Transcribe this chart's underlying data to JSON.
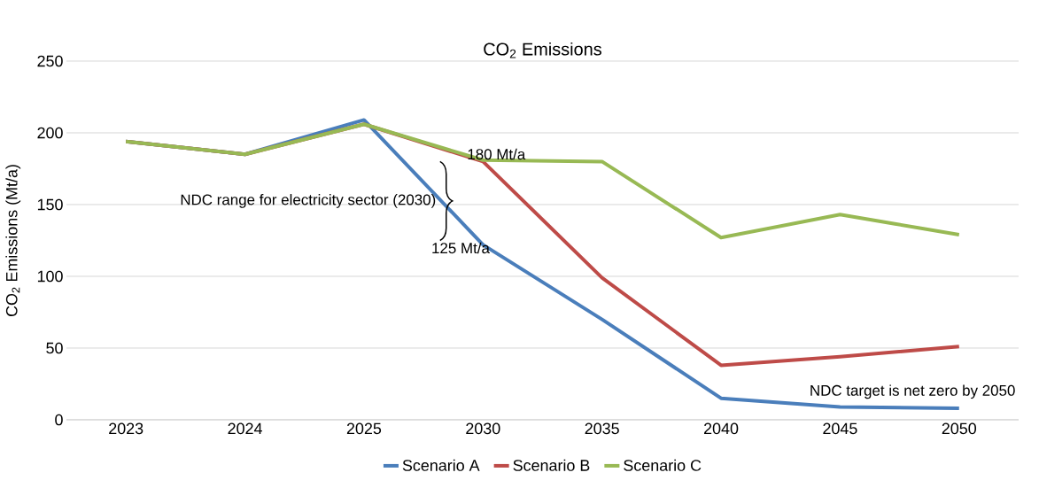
{
  "chart_data": {
    "type": "line",
    "title": "CO$_{2}$ Emissions",
    "ylabel": "CO$_{2}$ Emissions (Mt/a)",
    "categories": [
      "2023",
      "2024",
      "2025",
      "2030",
      "2035",
      "2040",
      "2045",
      "2050"
    ],
    "series": [
      {
        "name": "Scenario A",
        "color": "#4a7ebb",
        "values": [
          194,
          185,
          209,
          122,
          70,
          15,
          9,
          8
        ]
      },
      {
        "name": "Scenario B",
        "color": "#be4b48",
        "values": [
          194,
          185,
          206,
          180,
          99,
          38,
          44,
          51
        ]
      },
      {
        "name": "Scenario C",
        "color": "#98b954",
        "values": [
          194,
          185,
          206,
          181,
          180,
          127,
          143,
          129
        ]
      }
    ],
    "ylim": [
      0,
      250
    ],
    "yticks": [
      0,
      50,
      100,
      150,
      200,
      250
    ],
    "grid": "y",
    "legend": "bottom",
    "marker": "none",
    "line_style": "solid",
    "annotations": [
      {
        "text": "180 Mt/a",
        "x": "2030",
        "y": 180
      },
      {
        "text": "125 Mt/a",
        "x": "2030",
        "y": 125
      },
      "NDC range for electricity sector (2030)",
      "NDC target is net zero by 2050"
    ]
  }
}
